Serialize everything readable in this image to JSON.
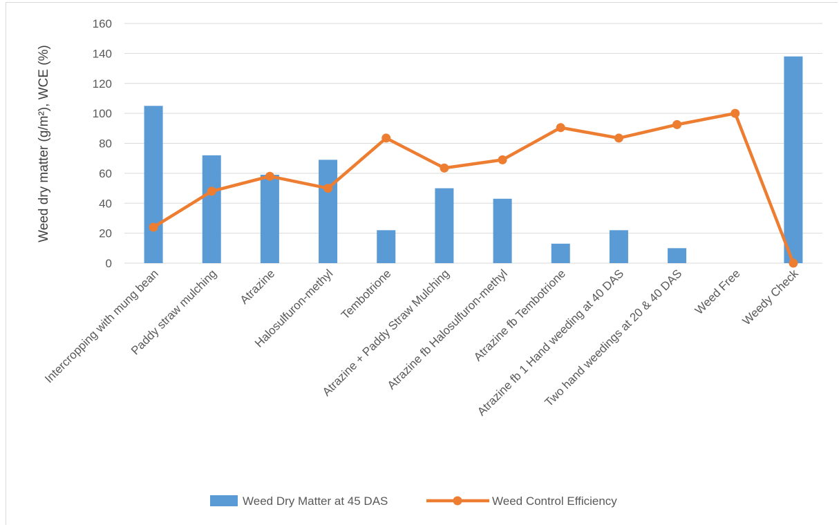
{
  "chart_data": {
    "type": "bar",
    "title": "",
    "xlabel": "",
    "ylabel": "Weed dry matter (g/m²), WCE (%)",
    "ylim": [
      0,
      160
    ],
    "yticks": [
      0,
      20,
      40,
      60,
      80,
      100,
      120,
      140,
      160
    ],
    "grid": true,
    "legend_position": "bottom",
    "categories": [
      "Intercropping with mung bean",
      "Paddy straw mulching",
      "Atrazine",
      "Halosulfuron-methyl",
      "Tembotrione",
      "Atrazine + Paddy Straw Mulching",
      "Atrazine  fb Halosulfuron-methyl",
      "Atrazine fb Tembotrione",
      "Atrazine fb 1 Hand weeding at 40 DAS",
      "Two hand weedings at 20 & 40 DAS",
      "Weed Free",
      "Weedy Check"
    ],
    "series": [
      {
        "name": "Weed Dry Matter at 45 DAS",
        "type": "bar",
        "color": "#5b9bd5",
        "values": [
          105,
          72,
          59,
          69,
          22,
          50,
          43,
          13,
          22,
          10,
          0,
          138
        ]
      },
      {
        "name": "Weed Control Efficiency",
        "type": "line",
        "color": "#ed7d31",
        "values": [
          24,
          48,
          58,
          50,
          83.5,
          63.5,
          69,
          90.5,
          83.5,
          92.5,
          100,
          0
        ]
      }
    ]
  }
}
